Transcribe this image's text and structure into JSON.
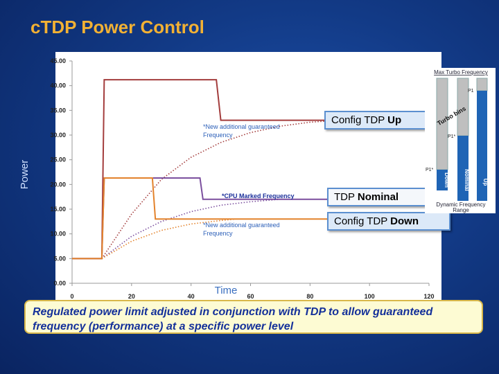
{
  "title": "cTDP Power Control",
  "chart_data": {
    "type": "line",
    "x_label": "Time",
    "y_label": "Power",
    "xlim": [
      0,
      120
    ],
    "xticks": [
      0,
      20,
      40,
      60,
      80,
      100,
      120
    ],
    "ylim": [
      0,
      45
    ],
    "yticks": [
      {
        "value": 0,
        "label": "0.00"
      },
      {
        "value": 5,
        "label": "5.00"
      },
      {
        "value": 10,
        "label": "10.00"
      },
      {
        "value": 15,
        "label": "15.00"
      },
      {
        "value": 20,
        "label": "20.00"
      },
      {
        "value": 25,
        "label": "25.00"
      },
      {
        "value": 30,
        "label": "30.00"
      },
      {
        "value": 35,
        "label": "35.00"
      },
      {
        "value": 40,
        "label": "40.00"
      },
      {
        "value": 45,
        "label": "45.00"
      }
    ],
    "grid": false,
    "series": [
      {
        "color": "#a33c3c",
        "style": "solid",
        "x": [
          0,
          10,
          10.8,
          48.5,
          50,
          120
        ],
        "values": [
          5,
          5,
          41.2,
          41.2,
          33,
          33
        ]
      },
      {
        "color": "#7b4f9e",
        "style": "solid",
        "x": [
          0,
          10,
          10.8,
          43,
          44,
          120
        ],
        "values": [
          5,
          5,
          21.3,
          21.3,
          17,
          17
        ]
      },
      {
        "color": "#e3822b",
        "style": "solid",
        "x": [
          0,
          10,
          10.8,
          27,
          28,
          120
        ],
        "values": [
          5,
          5,
          21.3,
          21.3,
          13,
          13
        ]
      },
      {
        "color": "#a33c3c",
        "style": "dotted",
        "x": [
          10,
          20,
          30,
          40,
          50,
          60,
          70,
          80,
          90
        ],
        "values": [
          5,
          14,
          21,
          25.5,
          28.5,
          30.5,
          31.8,
          32.6,
          33
        ]
      },
      {
        "color": "#7b4f9e",
        "style": "dotted",
        "x": [
          10,
          20,
          30,
          40,
          50,
          60,
          70
        ],
        "values": [
          5,
          9.5,
          12.5,
          14.5,
          15.8,
          16.5,
          17
        ]
      },
      {
        "color": "#e3822b",
        "style": "dotted",
        "x": [
          10,
          20,
          30,
          40,
          50,
          55
        ],
        "values": [
          5,
          8.5,
          10.7,
          12,
          12.7,
          13
        ]
      }
    ],
    "annotations": [
      {
        "lines": [
          "*New additional guaranteed",
          "Frequency"
        ],
        "bold": false
      },
      {
        "lines": [
          "*CPU Marked Frequency"
        ],
        "bold": true
      },
      {
        "lines": [
          "*New additional guaranteed",
          "Frequency"
        ],
        "bold": false
      }
    ]
  },
  "callouts": [
    {
      "text": "Config TDP",
      "bold": "Up"
    },
    {
      "text": "TDP",
      "bold": "Nominal"
    },
    {
      "text": "Config TDP",
      "bold": "Down"
    }
  ],
  "diagram": {
    "top_label": "Max Turbo Frequency",
    "bars": [
      "Down",
      "Nominal",
      "Up"
    ],
    "turbo": "Turbo bins",
    "levels": [
      "P1",
      "P1*",
      "P1*"
    ],
    "bottom_label": [
      "Dynamic Frequency",
      "Range"
    ]
  },
  "footer": "Regulated power limit  adjusted in conjunction with TDP to allow guaranteed frequency (performance) at a specific power level"
}
